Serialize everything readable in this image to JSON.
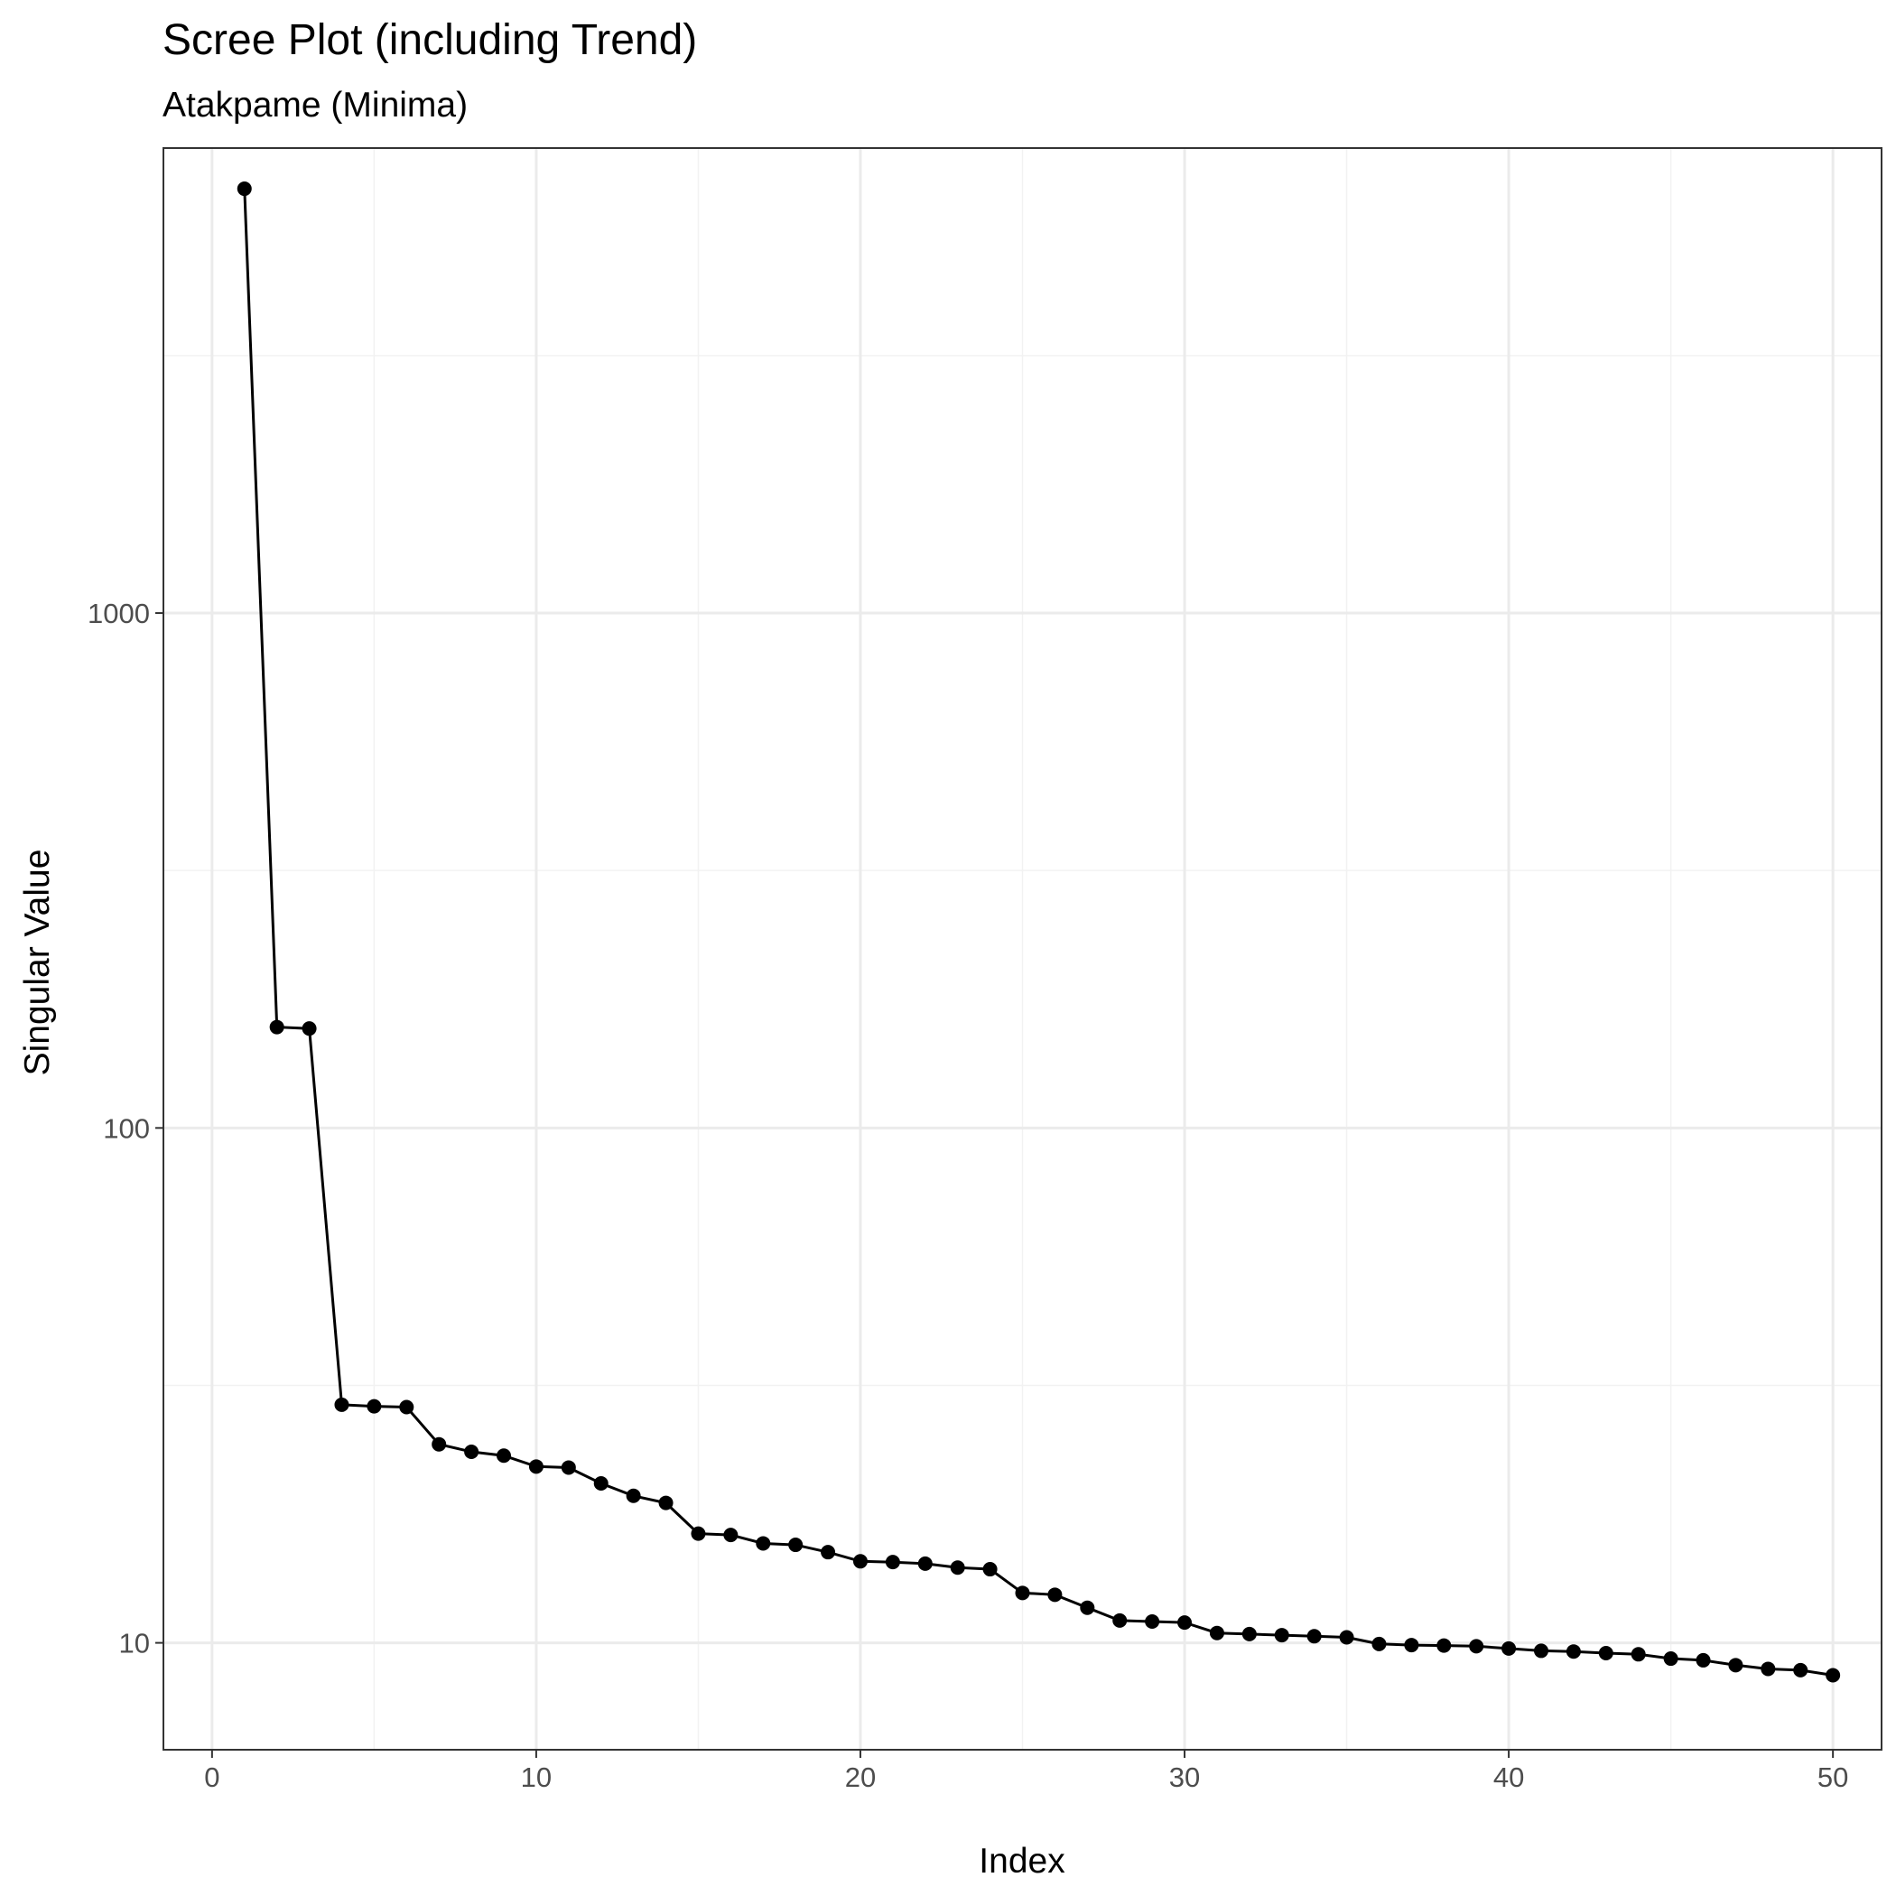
{
  "chart_data": {
    "type": "line",
    "title": "Scree Plot (including Trend)",
    "subtitle": "Atakpame (Minima)",
    "xlabel": "Index",
    "ylabel": "Singular Value",
    "x_scale": "linear",
    "y_scale": "log10",
    "xlim": [
      -1.5,
      51.5
    ],
    "ylim": [
      6.2,
      8000
    ],
    "x_ticks": [
      0,
      10,
      20,
      30,
      40,
      50
    ],
    "y_ticks": [
      10,
      100,
      1000
    ],
    "x_tick_labels": [
      "0",
      "10",
      "20",
      "30",
      "40",
      "50"
    ],
    "y_tick_labels": [
      "10",
      "100",
      "1000"
    ],
    "grid": true,
    "legend": "none",
    "series": [
      {
        "x": [
          1,
          2,
          3,
          4,
          5,
          6,
          7,
          8,
          9,
          10,
          11,
          12,
          13,
          14,
          15,
          16,
          17,
          18,
          19,
          20,
          21,
          22,
          23,
          24,
          25,
          26,
          27,
          28,
          29,
          30,
          31,
          32,
          33,
          34,
          35,
          36,
          37,
          38,
          39,
          40,
          41,
          42,
          43,
          44,
          45,
          46,
          47,
          48,
          49,
          50
        ],
        "values": [
          6670,
          157,
          156,
          29.0,
          28.8,
          28.7,
          24.3,
          23.5,
          23.1,
          22.0,
          21.9,
          20.4,
          19.3,
          18.7,
          16.3,
          16.2,
          15.6,
          15.5,
          15.0,
          14.4,
          14.35,
          14.25,
          14.0,
          13.9,
          12.5,
          12.4,
          11.7,
          11.05,
          11.0,
          10.95,
          10.45,
          10.4,
          10.35,
          10.3,
          10.25,
          9.95,
          9.9,
          9.88,
          9.85,
          9.75,
          9.65,
          9.62,
          9.55,
          9.5,
          9.32,
          9.25,
          9.05,
          8.9,
          8.85,
          8.65
        ]
      }
    ]
  }
}
